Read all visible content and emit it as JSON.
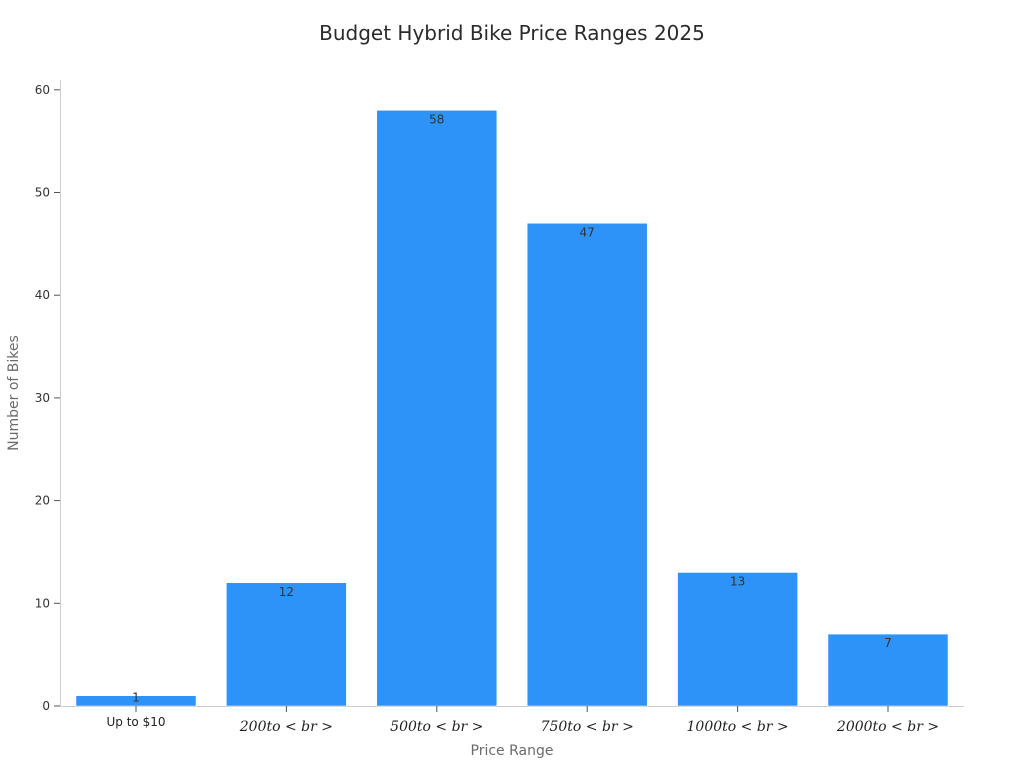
{
  "chart_data": {
    "type": "bar",
    "title": "Budget Hybrid Bike Price Ranges 2025",
    "xlabel": "Price Range",
    "ylabel": "Number of Bikes",
    "categories": [
      "Up to $10",
      "200to < br >",
      "500to < br >",
      "750to < br >",
      "1000to < br >",
      "2000to < br >"
    ],
    "values": [
      1,
      12,
      58,
      47,
      13,
      7
    ],
    "data_labels": [
      "1",
      "12",
      "58",
      "47",
      "13",
      "7"
    ],
    "ylim": [
      0,
      61
    ],
    "yticks": [
      0,
      10,
      20,
      30,
      40,
      50,
      60
    ],
    "grid": false,
    "bar_color": "#2e93f9"
  }
}
